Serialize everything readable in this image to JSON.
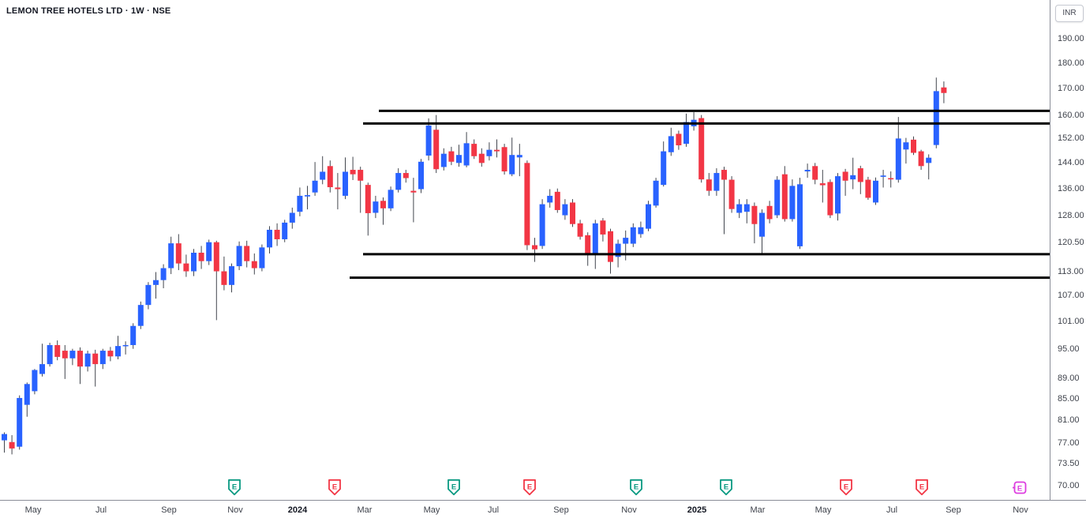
{
  "legend": {
    "title": "LEMON TREE HOTELS LTD · 1W · NSE"
  },
  "price_axis": {
    "currency_label": "INR",
    "ticks": [
      "190.00",
      "180.00",
      "170.00",
      "160.00",
      "152.00",
      "144.00",
      "136.00",
      "128.00",
      "120.50",
      "113.00",
      "107.00",
      "101.00",
      "95.00",
      "89.00",
      "85.00",
      "81.00",
      "77.00",
      "73.50",
      "70.00"
    ]
  },
  "time_axis": {
    "labels": [
      {
        "text": "May",
        "x": 42
      },
      {
        "text": "Jul",
        "x": 128
      },
      {
        "text": "Sep",
        "x": 214
      },
      {
        "text": "Nov",
        "x": 298
      },
      {
        "text": "2024",
        "x": 377,
        "year": true
      },
      {
        "text": "Mar",
        "x": 462
      },
      {
        "text": "May",
        "x": 547
      },
      {
        "text": "Jul",
        "x": 625
      },
      {
        "text": "Sep",
        "x": 711
      },
      {
        "text": "Nov",
        "x": 797
      },
      {
        "text": "2025",
        "x": 883,
        "year": true
      },
      {
        "text": "Mar",
        "x": 960
      },
      {
        "text": "May",
        "x": 1043
      },
      {
        "text": "Jul",
        "x": 1130
      },
      {
        "text": "Sep",
        "x": 1208
      },
      {
        "text": "Nov",
        "x": 1293
      }
    ]
  },
  "chart_data": {
    "type": "candlestick",
    "title": "LEMON TREE HOTELS LTD",
    "interval": "1W",
    "exchange": "NSE",
    "currency": "INR",
    "scale": "logarithmic",
    "ylim": [
      70,
      190
    ],
    "grid": false,
    "scale_cal": {
      "p_top": 190,
      "y_top": 50,
      "p_bottom": 70,
      "y_bottom": 616
    },
    "colors": {
      "up": "#2962ff",
      "down": "#f23645",
      "wick": "#42464e",
      "trendline": "#000000",
      "earnings_past_up": "#089981",
      "earnings_past_down": "#f23645",
      "earnings_upcoming": "#dd3ce0"
    },
    "candles_format": [
      "open",
      "high",
      "low",
      "close"
    ],
    "candles": [
      [
        77.6,
        79,
        75.5,
        78.7
      ],
      [
        77.3,
        78.5,
        75.2,
        76.2
      ],
      [
        76.5,
        85.8,
        76,
        85.3
      ],
      [
        84,
        88.3,
        81.8,
        88
      ],
      [
        86.6,
        91,
        86,
        90.8
      ],
      [
        90,
        96.3,
        89.5,
        92
      ],
      [
        92,
        96.5,
        91.5,
        96
      ],
      [
        96,
        97,
        92.8,
        93.5
      ],
      [
        94.8,
        96,
        89,
        93.2
      ],
      [
        93.2,
        95.2,
        91.8,
        94.8
      ],
      [
        94.8,
        95.5,
        88,
        91.5
      ],
      [
        91.5,
        94.8,
        90.5,
        94.2
      ],
      [
        94.2,
        95,
        87.5,
        92
      ],
      [
        92,
        95.2,
        91,
        94.8
      ],
      [
        94.8,
        95.6,
        92.6,
        93.6
      ],
      [
        93.6,
        98,
        93,
        95.8
      ],
      [
        95.8,
        96.8,
        94,
        96
      ],
      [
        96,
        100.8,
        95.2,
        100.2
      ],
      [
        100.2,
        105.8,
        99.5,
        105
      ],
      [
        105,
        110.5,
        104,
        109.8
      ],
      [
        109.8,
        113,
        106.5,
        111
      ],
      [
        111,
        115,
        109,
        114
      ],
      [
        114,
        122.3,
        112.5,
        120.5
      ],
      [
        120.5,
        123,
        113.5,
        115.2
      ],
      [
        115.2,
        117.5,
        111.8,
        113.2
      ],
      [
        113.2,
        119,
        112,
        118
      ],
      [
        118,
        119.8,
        113.8,
        115.8
      ],
      [
        115.8,
        121.5,
        114.8,
        120.8
      ],
      [
        120.8,
        121.2,
        101.5,
        113.2
      ],
      [
        113.2,
        117,
        108.5,
        109.8
      ],
      [
        109.8,
        115.2,
        108,
        114.5
      ],
      [
        114.5,
        121,
        113.5,
        119.8
      ],
      [
        119.8,
        121.2,
        114.2,
        115.8
      ],
      [
        115.8,
        117.8,
        112.4,
        114
      ],
      [
        114,
        120.2,
        113.2,
        119.4
      ],
      [
        119.4,
        125.2,
        117.8,
        124.2
      ],
      [
        124.2,
        126,
        119.8,
        121.6
      ],
      [
        121.6,
        127,
        120.8,
        126.2
      ],
      [
        126.2,
        130.5,
        124.5,
        129
      ],
      [
        129.3,
        136.5,
        128,
        134
      ],
      [
        133.8,
        137,
        130,
        134.2
      ],
      [
        135,
        144.5,
        134,
        138.6
      ],
      [
        138.9,
        146.4,
        137.5,
        141.4
      ],
      [
        143.2,
        145,
        135,
        136.6
      ],
      [
        136.5,
        141,
        130,
        136
      ],
      [
        134,
        146,
        133,
        141.4
      ],
      [
        142,
        146.2,
        138.8,
        140.6
      ],
      [
        142,
        143,
        129,
        138.6
      ],
      [
        137.3,
        138,
        122.6,
        128.9
      ],
      [
        129,
        134,
        127.5,
        132.3
      ],
      [
        132.5,
        133.5,
        125.6,
        130.3
      ],
      [
        130.3,
        136.8,
        129.5,
        135.8
      ],
      [
        135.8,
        142.5,
        135,
        141
      ],
      [
        141,
        142,
        138,
        139.4
      ],
      [
        135.5,
        139.5,
        126.3,
        135
      ],
      [
        136,
        145.5,
        134.8,
        144.6
      ],
      [
        146.6,
        159.3,
        145,
        156.8
      ],
      [
        155.3,
        160.5,
        141,
        142.2
      ],
      [
        142.9,
        149,
        141.8,
        147.2
      ],
      [
        148,
        149.5,
        143.5,
        144.6
      ],
      [
        144.2,
        150.2,
        143,
        146.8
      ],
      [
        143.4,
        154.5,
        142.8,
        150.7
      ],
      [
        150.5,
        152,
        145.5,
        146.4
      ],
      [
        147.2,
        149,
        143,
        144.2
      ],
      [
        146.4,
        151,
        145,
        148.5
      ],
      [
        148.5,
        152,
        146,
        148
      ],
      [
        149.4,
        150.5,
        140.5,
        141.5
      ],
      [
        140.6,
        152.6,
        140,
        146.8
      ],
      [
        146,
        150.5,
        140,
        146.8
      ],
      [
        144.2,
        145,
        118.7,
        120
      ],
      [
        120,
        122,
        115.6,
        118.9
      ],
      [
        119.8,
        133,
        119,
        131.5
      ],
      [
        132,
        136,
        130.5,
        134
      ],
      [
        135.2,
        136.2,
        129,
        129.8
      ],
      [
        128.3,
        133,
        127,
        131.5
      ],
      [
        132,
        133,
        125,
        125.8
      ],
      [
        126,
        127,
        121.5,
        122.3
      ],
      [
        122.7,
        123.5,
        114.6,
        117.6
      ],
      [
        117.6,
        127,
        113.8,
        126
      ],
      [
        126.8,
        127.5,
        121,
        122.9
      ],
      [
        123.8,
        124.5,
        112.6,
        115.6
      ],
      [
        116.9,
        121.5,
        114.2,
        120.4
      ],
      [
        120.4,
        124,
        116,
        122
      ],
      [
        120.4,
        126,
        119.5,
        124.9
      ],
      [
        123,
        126.5,
        122,
        124.9
      ],
      [
        124.5,
        132.5,
        123.8,
        131.5
      ],
      [
        131.1,
        139.5,
        130.5,
        138.6
      ],
      [
        137.3,
        151.3,
        136.8,
        148
      ],
      [
        147.7,
        156,
        146.5,
        153.1
      ],
      [
        153.9,
        155,
        148.5,
        150
      ],
      [
        150.5,
        161,
        149.5,
        158
      ],
      [
        156.5,
        161.5,
        155,
        158.8
      ],
      [
        159.4,
        160.5,
        138,
        139
      ],
      [
        139,
        141,
        134,
        135.5
      ],
      [
        135.5,
        142.5,
        134,
        141
      ],
      [
        142,
        143,
        123,
        138.9
      ],
      [
        138.9,
        140,
        129,
        130.1
      ],
      [
        129,
        133,
        127.5,
        131.5
      ],
      [
        129.3,
        133,
        126,
        131.5
      ],
      [
        131,
        132,
        120.5,
        125.8
      ],
      [
        122.3,
        130,
        117.6,
        129
      ],
      [
        131,
        132.5,
        126,
        127.2
      ],
      [
        128.3,
        140,
        127.5,
        138.9
      ],
      [
        140.6,
        143.2,
        126.5,
        127.2
      ],
      [
        127.2,
        139,
        126.5,
        137
      ],
      [
        119.7,
        139.5,
        119,
        137.5
      ],
      [
        141.5,
        144,
        139.5,
        142
      ],
      [
        143.2,
        144.2,
        137.5,
        138.9
      ],
      [
        137.8,
        142,
        132,
        137.2
      ],
      [
        138.2,
        139,
        127.5,
        128.3
      ],
      [
        128.8,
        141,
        126.8,
        140
      ],
      [
        141.4,
        142.3,
        134,
        138.6
      ],
      [
        139,
        145.9,
        136,
        140.3
      ],
      [
        142.5,
        143.3,
        134.5,
        138.2
      ],
      [
        138.9,
        139.8,
        132.8,
        133.4
      ],
      [
        132,
        139.6,
        131.3,
        138.6
      ],
      [
        139.8,
        142,
        136.5,
        140.2
      ],
      [
        139.4,
        141.5,
        136.5,
        139
      ],
      [
        138.9,
        159.8,
        138,
        152.3
      ],
      [
        148.6,
        152.5,
        144,
        151
      ],
      [
        151.9,
        153,
        146.8,
        147.5
      ],
      [
        148,
        148.5,
        142,
        143.2
      ],
      [
        144.2,
        147,
        139,
        145.9
      ],
      [
        150.1,
        174.5,
        149,
        169.3
      ],
      [
        170.7,
        173,
        164.8,
        168.6
      ]
    ],
    "trendlines": [
      {
        "price": 162.0,
        "x_start": 480,
        "x_end": 1330
      },
      {
        "price": 157.5,
        "x_start": 460,
        "x_end": 1330
      },
      {
        "price": 117.6,
        "x_start": 460,
        "x_end": 1330
      },
      {
        "price": 111.6,
        "x_start": 443,
        "x_end": 1330
      }
    ],
    "earnings_markers": [
      {
        "x": 297,
        "kind": "past",
        "color": "#089981",
        "letter": "E"
      },
      {
        "x": 424,
        "kind": "past",
        "color": "#f23645",
        "letter": "E"
      },
      {
        "x": 575,
        "kind": "past",
        "color": "#089981",
        "letter": "E"
      },
      {
        "x": 671,
        "kind": "past",
        "color": "#f23645",
        "letter": "E"
      },
      {
        "x": 806,
        "kind": "past",
        "color": "#089981",
        "letter": "E"
      },
      {
        "x": 920,
        "kind": "past",
        "color": "#089981",
        "letter": "E"
      },
      {
        "x": 1072,
        "kind": "past",
        "color": "#f23645",
        "letter": "E"
      },
      {
        "x": 1168,
        "kind": "past",
        "color": "#f23645",
        "letter": "E"
      },
      {
        "x": 1292,
        "kind": "upcoming",
        "color": "#dd3ce0",
        "letter": "E"
      }
    ]
  }
}
